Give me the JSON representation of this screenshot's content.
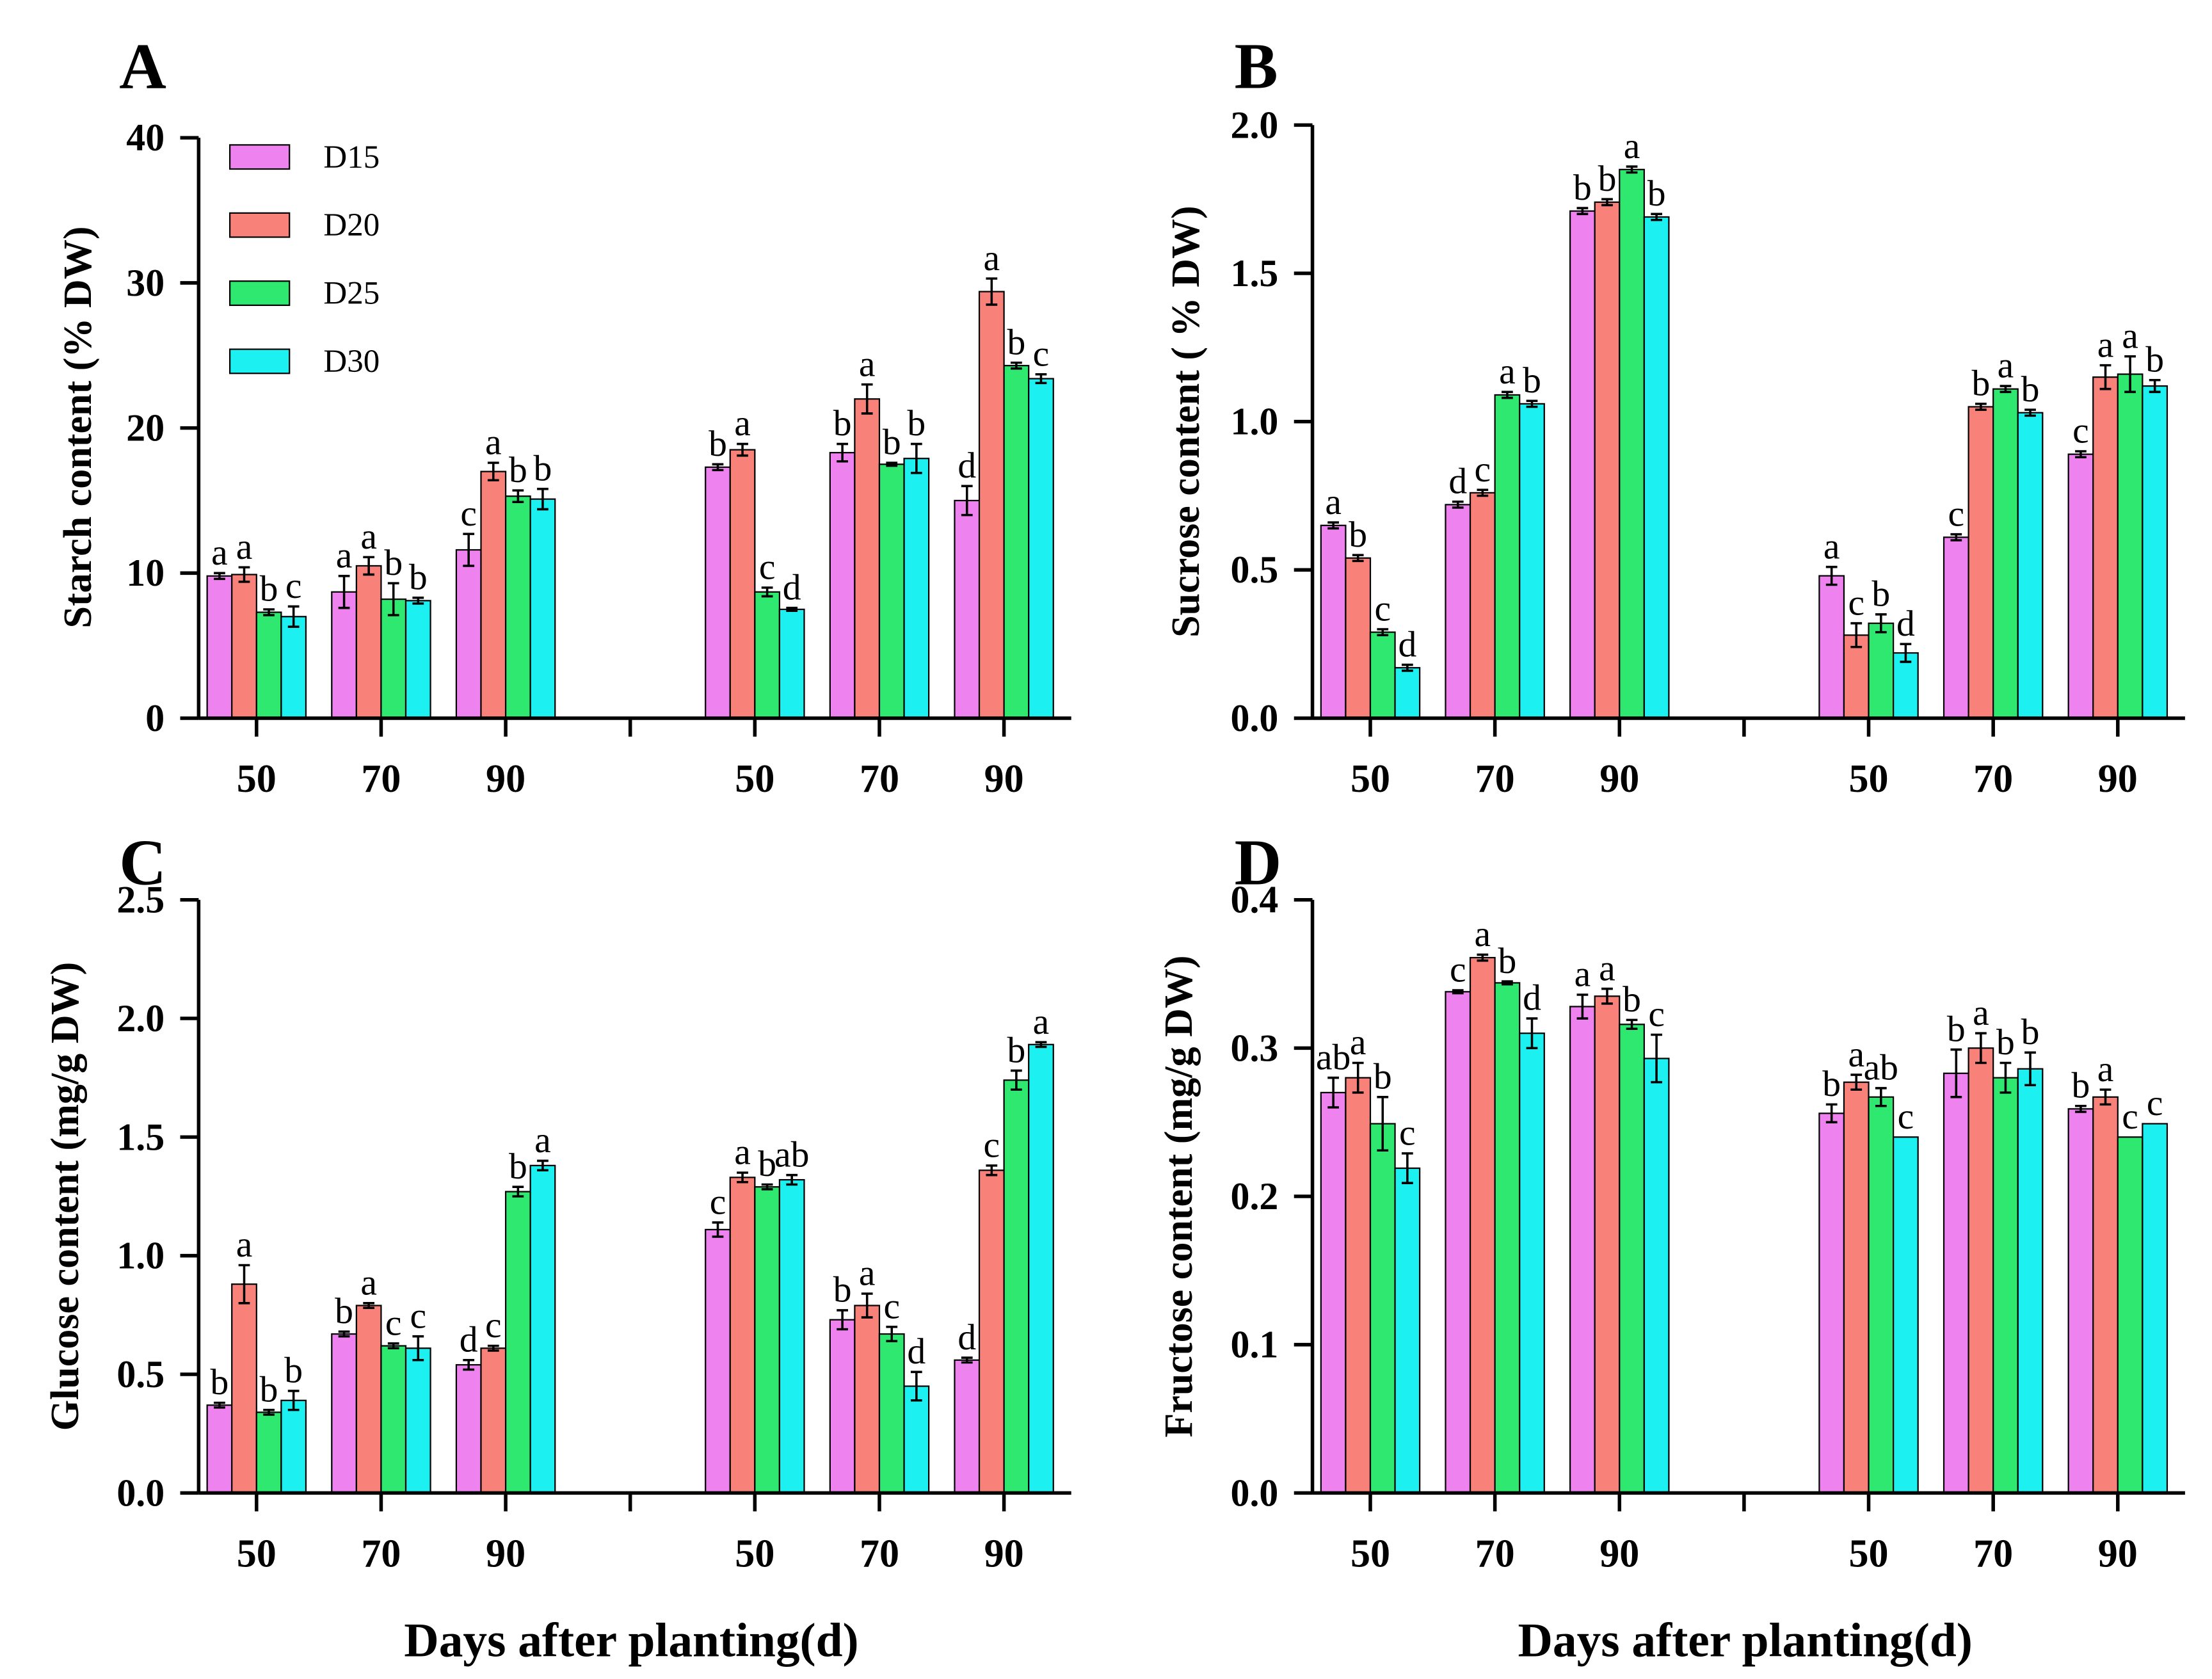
{
  "chart_data": [
    {
      "panel": "A",
      "type": "bar",
      "ylabel": "Starch content (% DW)",
      "ylim": [
        0,
        40
      ],
      "yticks": [
        0,
        10,
        20,
        30,
        40
      ],
      "ytick_labels": [
        "0",
        "10",
        "20",
        "30",
        "40"
      ],
      "categories": [
        "50",
        "70",
        "90",
        "50",
        "70",
        "90"
      ],
      "legend": "top-left",
      "series": [
        {
          "name": "D15",
          "color": "#EE82EE",
          "values": [
            9.8,
            8.7,
            11.6,
            17.3,
            18.3,
            15.0
          ],
          "errors": [
            0.2,
            1.1,
            1.1,
            0.2,
            0.6,
            1.0
          ],
          "letters": [
            "a",
            "a",
            "c",
            "b",
            "b",
            "d"
          ]
        },
        {
          "name": "D20",
          "color": "#F8827A",
          "values": [
            9.9,
            10.5,
            17.0,
            18.5,
            22.0,
            29.4
          ],
          "errors": [
            0.5,
            0.6,
            0.6,
            0.4,
            1.0,
            0.9
          ],
          "letters": [
            "a",
            "a",
            "a",
            "a",
            "a",
            "a"
          ]
        },
        {
          "name": "D25",
          "color": "#2EE870",
          "values": [
            7.3,
            8.2,
            15.3,
            8.7,
            17.5,
            24.3
          ],
          "errors": [
            0.2,
            1.1,
            0.4,
            0.3,
            0.1,
            0.2
          ],
          "letters": [
            "b",
            "b",
            "b",
            "c",
            "b",
            "b"
          ]
        },
        {
          "name": "D30",
          "color": "#1CF0F0",
          "values": [
            7.0,
            8.1,
            15.1,
            7.5,
            17.9,
            23.4
          ],
          "errors": [
            0.7,
            0.2,
            0.7,
            0.1,
            1.0,
            0.3
          ],
          "letters": [
            "c",
            "b",
            "b",
            "d",
            "b",
            "c"
          ]
        }
      ]
    },
    {
      "panel": "B",
      "type": "bar",
      "ylabel": "Sucrose content ( % DW)",
      "ylim": [
        0,
        2.0
      ],
      "yticks": [
        0,
        0.5,
        1.0,
        1.5,
        2.0
      ],
      "ytick_labels": [
        "0.0",
        "0.5",
        "1.0",
        "1.5",
        "2.0"
      ],
      "categories": [
        "50",
        "70",
        "90",
        "50",
        "70",
        "90"
      ],
      "series": [
        {
          "name": "D15",
          "color": "#EE82EE",
          "values": [
            0.65,
            0.72,
            1.71,
            0.48,
            0.61,
            0.89
          ],
          "errors": [
            0.01,
            0.01,
            0.01,
            0.03,
            0.01,
            0.01
          ],
          "letters": [
            "a",
            "d",
            "b",
            "a",
            "c",
            "c"
          ]
        },
        {
          "name": "D20",
          "color": "#F8827A",
          "values": [
            0.54,
            0.76,
            1.74,
            0.28,
            1.05,
            1.15
          ],
          "errors": [
            0.01,
            0.01,
            0.01,
            0.04,
            0.01,
            0.04
          ],
          "letters": [
            "b",
            "c",
            "b",
            "c",
            "b",
            "a"
          ]
        },
        {
          "name": "D25",
          "color": "#2EE870",
          "values": [
            0.29,
            1.09,
            1.85,
            0.32,
            1.11,
            1.16
          ],
          "errors": [
            0.01,
            0.01,
            0.01,
            0.03,
            0.01,
            0.06
          ],
          "letters": [
            "c",
            "a",
            "a",
            "b",
            "a",
            "a"
          ]
        },
        {
          "name": "D30",
          "color": "#1CF0F0",
          "values": [
            0.17,
            1.06,
            1.69,
            0.22,
            1.03,
            1.12
          ],
          "errors": [
            0.01,
            0.01,
            0.01,
            0.03,
            0.01,
            0.02
          ],
          "letters": [
            "d",
            "b",
            "b",
            "d",
            "b",
            "b"
          ]
        }
      ]
    },
    {
      "panel": "C",
      "type": "bar",
      "ylabel": "Glucose content (mg/g DW)",
      "xlabel": "Days after planting(d)",
      "ylim": [
        0,
        2.5
      ],
      "yticks": [
        0,
        0.5,
        1.0,
        1.5,
        2.0,
        2.5
      ],
      "ytick_labels": [
        "0.0",
        "0.5",
        "1.0",
        "1.5",
        "2.0",
        "2.5"
      ],
      "categories": [
        "50",
        "70",
        "90",
        "50",
        "70",
        "90"
      ],
      "series": [
        {
          "name": "D15",
          "color": "#EE82EE",
          "values": [
            0.37,
            0.67,
            0.54,
            1.11,
            0.73,
            0.56
          ],
          "errors": [
            0.01,
            0.01,
            0.02,
            0.03,
            0.04,
            0.01
          ],
          "letters": [
            "b",
            "b",
            "d",
            "c",
            "b",
            "d"
          ]
        },
        {
          "name": "D20",
          "color": "#F8827A",
          "values": [
            0.88,
            0.79,
            0.61,
            1.33,
            0.79,
            1.36
          ],
          "errors": [
            0.08,
            0.01,
            0.01,
            0.02,
            0.05,
            0.02
          ],
          "letters": [
            "a",
            "a",
            "c",
            "a",
            "a",
            "c"
          ]
        },
        {
          "name": "D25",
          "color": "#2EE870",
          "values": [
            0.34,
            0.62,
            1.27,
            1.29,
            0.67,
            1.74
          ],
          "errors": [
            0.01,
            0.01,
            0.02,
            0.01,
            0.03,
            0.04
          ],
          "letters": [
            "b",
            "c",
            "b",
            "b",
            "c",
            "b"
          ]
        },
        {
          "name": "D30",
          "color": "#1CF0F0",
          "values": [
            0.39,
            0.61,
            1.38,
            1.32,
            0.45,
            1.89
          ],
          "errors": [
            0.04,
            0.05,
            0.02,
            0.02,
            0.06,
            0.01
          ],
          "letters": [
            "b",
            "c",
            "a",
            "ab",
            "d",
            "a"
          ]
        }
      ]
    },
    {
      "panel": "D",
      "type": "bar",
      "ylabel": "Fructose content (mg/g DW)",
      "xlabel": "Days after planting(d)",
      "ylim": [
        0,
        0.4
      ],
      "yticks": [
        0,
        0.1,
        0.2,
        0.3,
        0.4
      ],
      "ytick_labels": [
        "0.0",
        "0.1",
        "0.2",
        "0.3",
        "0.4"
      ],
      "categories": [
        "50",
        "70",
        "90",
        "50",
        "70",
        "90"
      ],
      "series": [
        {
          "name": "D15",
          "color": "#EE82EE",
          "values": [
            0.27,
            0.338,
            0.328,
            0.256,
            0.283,
            0.259
          ],
          "errors": [
            0.01,
            0.001,
            0.008,
            0.006,
            0.016,
            0.002
          ],
          "letters": [
            "ab",
            "c",
            "a",
            "b",
            "b",
            "b"
          ]
        },
        {
          "name": "D20",
          "color": "#F8827A",
          "values": [
            0.28,
            0.361,
            0.335,
            0.277,
            0.3,
            0.267
          ],
          "errors": [
            0.01,
            0.002,
            0.005,
            0.005,
            0.01,
            0.005
          ],
          "letters": [
            "a",
            "a",
            "a",
            "a",
            "a",
            "a"
          ]
        },
        {
          "name": "D25",
          "color": "#2EE870",
          "values": [
            0.249,
            0.344,
            0.316,
            0.267,
            0.28,
            0.24
          ],
          "errors": [
            0.018,
            0.001,
            0.003,
            0.006,
            0.01,
            0
          ],
          "letters": [
            "b",
            "b",
            "b",
            "ab",
            "b",
            "c"
          ]
        },
        {
          "name": "D30",
          "color": "#1CF0F0",
          "values": [
            0.219,
            0.31,
            0.293,
            0.24,
            0.286,
            0.249
          ],
          "errors": [
            0.01,
            0.01,
            0.016,
            0,
            0.011,
            0
          ],
          "letters": [
            "c",
            "d",
            "c",
            "c",
            "b",
            "c"
          ]
        }
      ]
    }
  ]
}
